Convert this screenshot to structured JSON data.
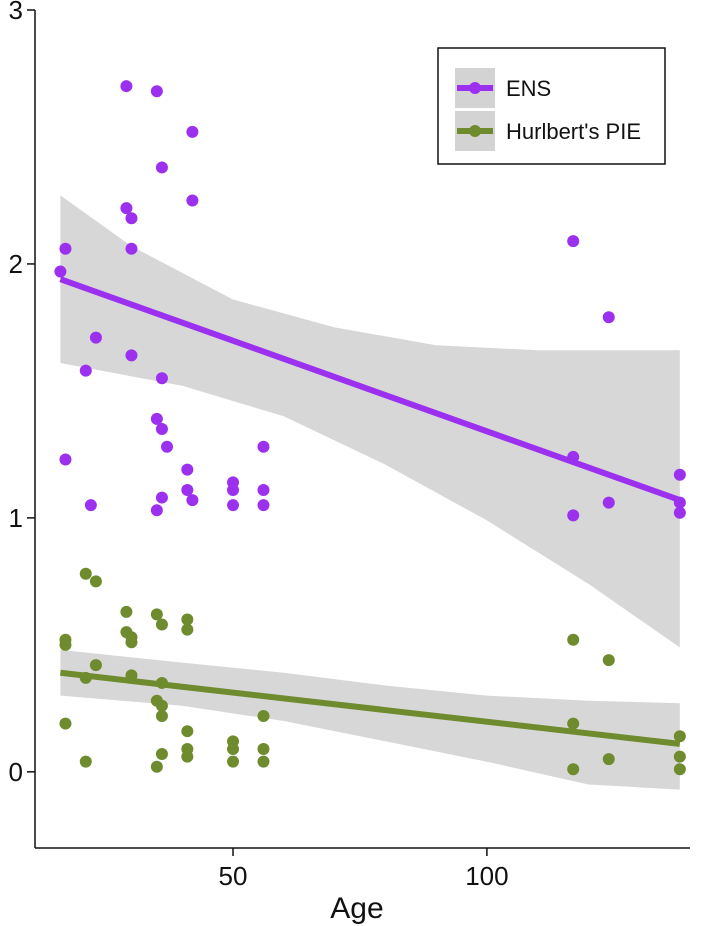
{
  "chart_data": {
    "type": "scatter",
    "title": "",
    "xlabel": "Age",
    "ylabel": "",
    "xlim": [
      11,
      140
    ],
    "ylim": [
      -0.3,
      3
    ],
    "x_ticks": [
      50,
      100
    ],
    "y_ticks": [
      0,
      1,
      2,
      3
    ],
    "grid": false,
    "legend_position": "top-right",
    "colors": {
      "band": "#d3d3d3",
      "axis": "#111111"
    },
    "series": [
      {
        "name": "ENS",
        "color": "#9b30ef",
        "points": [
          [
            16,
            1.97
          ],
          [
            17,
            2.06
          ],
          [
            17,
            1.23
          ],
          [
            21,
            1.58
          ],
          [
            22,
            1.05
          ],
          [
            23,
            1.71
          ],
          [
            29,
            2.7
          ],
          [
            29,
            2.22
          ],
          [
            30,
            2.18
          ],
          [
            30,
            2.06
          ],
          [
            30,
            1.64
          ],
          [
            35,
            2.68
          ],
          [
            35,
            1.39
          ],
          [
            35,
            1.03
          ],
          [
            36,
            1.35
          ],
          [
            36,
            2.38
          ],
          [
            36,
            1.55
          ],
          [
            37,
            1.28
          ],
          [
            36,
            1.08
          ],
          [
            41,
            1.19
          ],
          [
            41,
            1.11
          ],
          [
            42,
            2.52
          ],
          [
            42,
            2.25
          ],
          [
            42,
            1.07
          ],
          [
            50,
            1.14
          ],
          [
            50,
            1.11
          ],
          [
            50,
            1.05
          ],
          [
            56,
            1.28
          ],
          [
            56,
            1.11
          ],
          [
            56,
            1.05
          ],
          [
            117,
            2.09
          ],
          [
            117,
            1.24
          ],
          [
            117,
            1.01
          ],
          [
            124,
            1.79
          ],
          [
            124,
            1.06
          ],
          [
            138,
            1.17
          ],
          [
            138,
            1.06
          ],
          [
            138,
            1.02
          ]
        ],
        "fit": {
          "x": [
            16,
            138
          ],
          "y": [
            1.94,
            1.07
          ]
        },
        "ci_lower": [
          [
            16,
            1.61
          ],
          [
            40,
            1.52
          ],
          [
            60,
            1.4
          ],
          [
            80,
            1.21
          ],
          [
            100,
            0.99
          ],
          [
            120,
            0.74
          ],
          [
            138,
            0.49
          ]
        ],
        "ci_upper": [
          [
            16,
            2.27
          ],
          [
            30,
            2.07
          ],
          [
            50,
            1.86
          ],
          [
            70,
            1.75
          ],
          [
            90,
            1.68
          ],
          [
            110,
            1.66
          ],
          [
            138,
            1.66
          ]
        ]
      },
      {
        "name": "Hurlbert's PIE",
        "color": "#6e8b2e",
        "points": [
          [
            17,
            0.52
          ],
          [
            17,
            0.5
          ],
          [
            17,
            0.19
          ],
          [
            21,
            0.78
          ],
          [
            21,
            0.37
          ],
          [
            21,
            0.04
          ],
          [
            23,
            0.75
          ],
          [
            23,
            0.42
          ],
          [
            29,
            0.63
          ],
          [
            29,
            0.55
          ],
          [
            30,
            0.53
          ],
          [
            30,
            0.51
          ],
          [
            30,
            0.38
          ],
          [
            35,
            0.62
          ],
          [
            35,
            0.28
          ],
          [
            35,
            0.02
          ],
          [
            36,
            0.58
          ],
          [
            36,
            0.35
          ],
          [
            36,
            0.26
          ],
          [
            36,
            0.22
          ],
          [
            36,
            0.07
          ],
          [
            41,
            0.6
          ],
          [
            41,
            0.56
          ],
          [
            41,
            0.16
          ],
          [
            41,
            0.09
          ],
          [
            41,
            0.06
          ],
          [
            50,
            0.12
          ],
          [
            50,
            0.09
          ],
          [
            50,
            0.04
          ],
          [
            56,
            0.22
          ],
          [
            56,
            0.09
          ],
          [
            56,
            0.04
          ],
          [
            117,
            0.52
          ],
          [
            117,
            0.19
          ],
          [
            117,
            0.01
          ],
          [
            124,
            0.44
          ],
          [
            124,
            0.05
          ],
          [
            138,
            0.14
          ],
          [
            138,
            0.06
          ],
          [
            138,
            0.01
          ]
        ],
        "fit": {
          "x": [
            16,
            138
          ],
          "y": [
            0.39,
            0.11
          ]
        },
        "ci_lower": [
          [
            16,
            0.3
          ],
          [
            40,
            0.26
          ],
          [
            60,
            0.2
          ],
          [
            80,
            0.12
          ],
          [
            100,
            0.04
          ],
          [
            120,
            -0.05
          ],
          [
            138,
            -0.07
          ]
        ],
        "ci_upper": [
          [
            16,
            0.48
          ],
          [
            40,
            0.43
          ],
          [
            60,
            0.39
          ],
          [
            80,
            0.34
          ],
          [
            100,
            0.3
          ],
          [
            120,
            0.28
          ],
          [
            138,
            0.27
          ]
        ]
      }
    ]
  }
}
